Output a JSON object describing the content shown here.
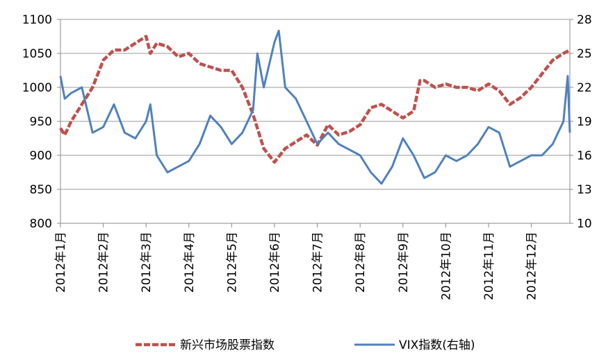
{
  "chart_data": {
    "type": "line",
    "xlim": [
      1,
      12.9
    ],
    "xticks": [
      {
        "value": 1,
        "label": "2012年1月"
      },
      {
        "value": 2,
        "label": "2012年2月"
      },
      {
        "value": 3,
        "label": "2012年3月"
      },
      {
        "value": 4,
        "label": "2012年4月"
      },
      {
        "value": 5,
        "label": "2012年5月"
      },
      {
        "value": 6,
        "label": "2012年6月"
      },
      {
        "value": 7,
        "label": "2012年7月"
      },
      {
        "value": 8,
        "label": "2012年8月"
      },
      {
        "value": 9,
        "label": "2012年9月"
      },
      {
        "value": 10,
        "label": "2012年10月"
      },
      {
        "value": 11,
        "label": "2012年11月"
      },
      {
        "value": 12,
        "label": "2012年12月"
      }
    ],
    "ylim": [
      800,
      1100
    ],
    "yticks": [
      800,
      850,
      900,
      950,
      1000,
      1050,
      1100
    ],
    "y2lim": [
      10,
      28
    ],
    "y2ticks": [
      10,
      13,
      16,
      19,
      22,
      25,
      28
    ],
    "grid": true,
    "series": [
      {
        "name": "新兴市场股票指数",
        "color": "#c0504d",
        "dashed": true,
        "x": [
          1,
          1.1,
          1.25,
          1.5,
          1.75,
          2,
          2.25,
          2.5,
          2.75,
          3,
          3.1,
          3.25,
          3.5,
          3.75,
          4,
          4.25,
          4.5,
          4.75,
          5,
          5.25,
          5.5,
          5.75,
          6,
          6.25,
          6.5,
          6.75,
          7,
          7.25,
          7.5,
          7.75,
          8,
          8.25,
          8.5,
          8.75,
          9,
          9.25,
          9.4,
          9.5,
          9.75,
          10,
          10.25,
          10.5,
          10.75,
          11,
          11.25,
          11.5,
          11.75,
          12,
          12.25,
          12.5,
          12.75,
          12.9
        ],
        "values": [
          940,
          930,
          950,
          975,
          1000,
          1040,
          1055,
          1055,
          1065,
          1075,
          1050,
          1065,
          1060,
          1045,
          1050,
          1035,
          1030,
          1025,
          1025,
          1000,
          960,
          910,
          890,
          910,
          920,
          930,
          915,
          945,
          930,
          935,
          945,
          970,
          975,
          965,
          955,
          965,
          1010,
          1010,
          1000,
          1005,
          1000,
          1000,
          995,
          1005,
          995,
          975,
          985,
          1000,
          1020,
          1040,
          1050,
          1055
        ]
      },
      {
        "name": "VIX指数(右轴)",
        "color": "#4f81bd",
        "axis": "y2",
        "x": [
          1,
          1.1,
          1.25,
          1.5,
          1.75,
          2,
          2.25,
          2.5,
          2.75,
          3,
          3.1,
          3.25,
          3.5,
          3.75,
          4,
          4.25,
          4.5,
          4.75,
          5,
          5.25,
          5.5,
          5.6,
          5.75,
          6,
          6.1,
          6.25,
          6.5,
          6.75,
          7,
          7.25,
          7.5,
          7.75,
          8,
          8.25,
          8.5,
          8.75,
          9,
          9.25,
          9.5,
          9.75,
          10,
          10.25,
          10.5,
          10.75,
          11,
          11.25,
          11.5,
          11.75,
          12,
          12.25,
          12.5,
          12.75,
          12.85,
          12.9
        ],
        "values": [
          23,
          21,
          21.5,
          22,
          18,
          18.5,
          20.5,
          18,
          17.5,
          19,
          20.5,
          16,
          14.5,
          15,
          15.5,
          17,
          19.5,
          18.5,
          17,
          18,
          20,
          25,
          22,
          26,
          27,
          22,
          21,
          19,
          17,
          18,
          17,
          16.5,
          16,
          14.5,
          13.5,
          15,
          17.5,
          16,
          14,
          14.5,
          16,
          15.5,
          16,
          17,
          18.5,
          18,
          15,
          15.5,
          16,
          16,
          17,
          19,
          23,
          18
        ]
      }
    ]
  }
}
